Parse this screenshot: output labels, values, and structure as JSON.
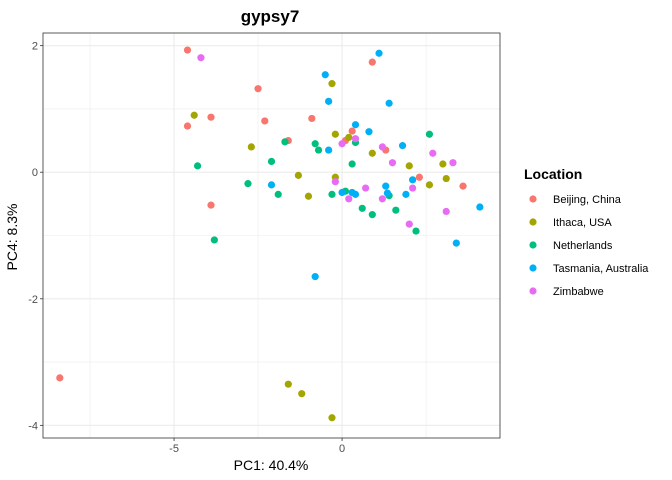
{
  "chart_data": {
    "type": "scatter",
    "title": "gypsy7",
    "xlabel": "PC1: 40.4%",
    "ylabel": "PC4: 8.3%",
    "xlim": [
      -8.9,
      4.7
    ],
    "ylim": [
      -4.2,
      2.2
    ],
    "x_ticks": [
      -5,
      0
    ],
    "y_ticks": [
      -4,
      -2,
      0,
      2
    ],
    "grid": true,
    "legend": {
      "title": "Location",
      "position": "right"
    },
    "series": [
      {
        "name": "Beijing, China",
        "color": "#F8766D",
        "points": [
          {
            "x": -8.4,
            "y": -3.25
          },
          {
            "x": -4.6,
            "y": 1.93
          },
          {
            "x": -4.6,
            "y": 0.73
          },
          {
            "x": -3.9,
            "y": 0.87
          },
          {
            "x": -3.9,
            "y": -0.52
          },
          {
            "x": -2.5,
            "y": 1.32
          },
          {
            "x": -2.3,
            "y": 0.81
          },
          {
            "x": -1.6,
            "y": 0.5
          },
          {
            "x": -0.9,
            "y": 0.85
          },
          {
            "x": 0.1,
            "y": 0.5
          },
          {
            "x": 0.3,
            "y": 0.65
          },
          {
            "x": 0.9,
            "y": 1.74
          },
          {
            "x": 1.3,
            "y": 0.35
          },
          {
            "x": 2.3,
            "y": -0.08
          },
          {
            "x": 3.6,
            "y": -0.22
          }
        ]
      },
      {
        "name": "Ithaca, USA",
        "color": "#A3A500",
        "points": [
          {
            "x": -4.4,
            "y": 0.9
          },
          {
            "x": -2.7,
            "y": 0.4
          },
          {
            "x": -1.3,
            "y": -0.05
          },
          {
            "x": -1.0,
            "y": -0.38
          },
          {
            "x": -1.6,
            "y": -3.35
          },
          {
            "x": -1.2,
            "y": -3.5
          },
          {
            "x": -0.3,
            "y": 1.4
          },
          {
            "x": -0.2,
            "y": 0.6
          },
          {
            "x": -0.2,
            "y": -0.08
          },
          {
            "x": -0.3,
            "y": -3.88
          },
          {
            "x": 0.2,
            "y": 0.55
          },
          {
            "x": 0.9,
            "y": 0.3
          },
          {
            "x": 2.0,
            "y": 0.1
          },
          {
            "x": 2.6,
            "y": -0.2
          },
          {
            "x": 3.0,
            "y": 0.13
          },
          {
            "x": 3.1,
            "y": -0.1
          }
        ]
      },
      {
        "name": "Netherlands",
        "color": "#00BF7D",
        "points": [
          {
            "x": -4.3,
            "y": 0.1
          },
          {
            "x": -3.8,
            "y": -1.07
          },
          {
            "x": -2.8,
            "y": -0.18
          },
          {
            "x": -2.1,
            "y": 0.17
          },
          {
            "x": -1.9,
            "y": -0.35
          },
          {
            "x": -1.7,
            "y": 0.48
          },
          {
            "x": -0.8,
            "y": 0.45
          },
          {
            "x": -0.7,
            "y": 0.35
          },
          {
            "x": -0.3,
            "y": -0.35
          },
          {
            "x": 0.1,
            "y": -0.3
          },
          {
            "x": 0.3,
            "y": 0.13
          },
          {
            "x": 0.4,
            "y": 0.47
          },
          {
            "x": 0.6,
            "y": -0.57
          },
          {
            "x": 0.9,
            "y": -0.67
          },
          {
            "x": 1.4,
            "y": -0.37
          },
          {
            "x": 1.6,
            "y": -0.6
          },
          {
            "x": 2.2,
            "y": -0.93
          },
          {
            "x": 2.6,
            "y": 0.6
          }
        ]
      },
      {
        "name": "Tasmania, Australia",
        "color": "#00B0F6",
        "points": [
          {
            "x": -2.1,
            "y": -0.2
          },
          {
            "x": -0.8,
            "y": -1.65
          },
          {
            "x": -0.5,
            "y": 1.54
          },
          {
            "x": -0.4,
            "y": 1.12
          },
          {
            "x": -0.4,
            "y": 0.35
          },
          {
            "x": 0.0,
            "y": -0.32
          },
          {
            "x": 0.3,
            "y": -0.32
          },
          {
            "x": 0.4,
            "y": -0.35
          },
          {
            "x": 0.4,
            "y": 0.75
          },
          {
            "x": 0.8,
            "y": 0.64
          },
          {
            "x": 1.1,
            "y": 1.88
          },
          {
            "x": 1.3,
            "y": -0.22
          },
          {
            "x": 1.35,
            "y": -0.33
          },
          {
            "x": 1.4,
            "y": 1.09
          },
          {
            "x": 1.8,
            "y": 0.42
          },
          {
            "x": 1.9,
            "y": -0.35
          },
          {
            "x": 2.1,
            "y": -0.12
          },
          {
            "x": 3.4,
            "y": -1.12
          },
          {
            "x": 4.1,
            "y": -0.55
          }
        ]
      },
      {
        "name": "Zimbabwe",
        "color": "#E76BF3",
        "points": [
          {
            "x": -4.2,
            "y": 1.81
          },
          {
            "x": -0.2,
            "y": -0.15
          },
          {
            "x": 0.0,
            "y": 0.45
          },
          {
            "x": 0.2,
            "y": -0.42
          },
          {
            "x": 0.4,
            "y": 0.53
          },
          {
            "x": 0.7,
            "y": -0.25
          },
          {
            "x": 1.2,
            "y": 0.4
          },
          {
            "x": 1.2,
            "y": -0.42
          },
          {
            "x": 1.5,
            "y": 0.15
          },
          {
            "x": 2.0,
            "y": -0.82
          },
          {
            "x": 2.1,
            "y": -0.25
          },
          {
            "x": 2.7,
            "y": 0.3
          },
          {
            "x": 3.1,
            "y": -0.62
          },
          {
            "x": 3.3,
            "y": 0.15
          }
        ]
      }
    ]
  }
}
